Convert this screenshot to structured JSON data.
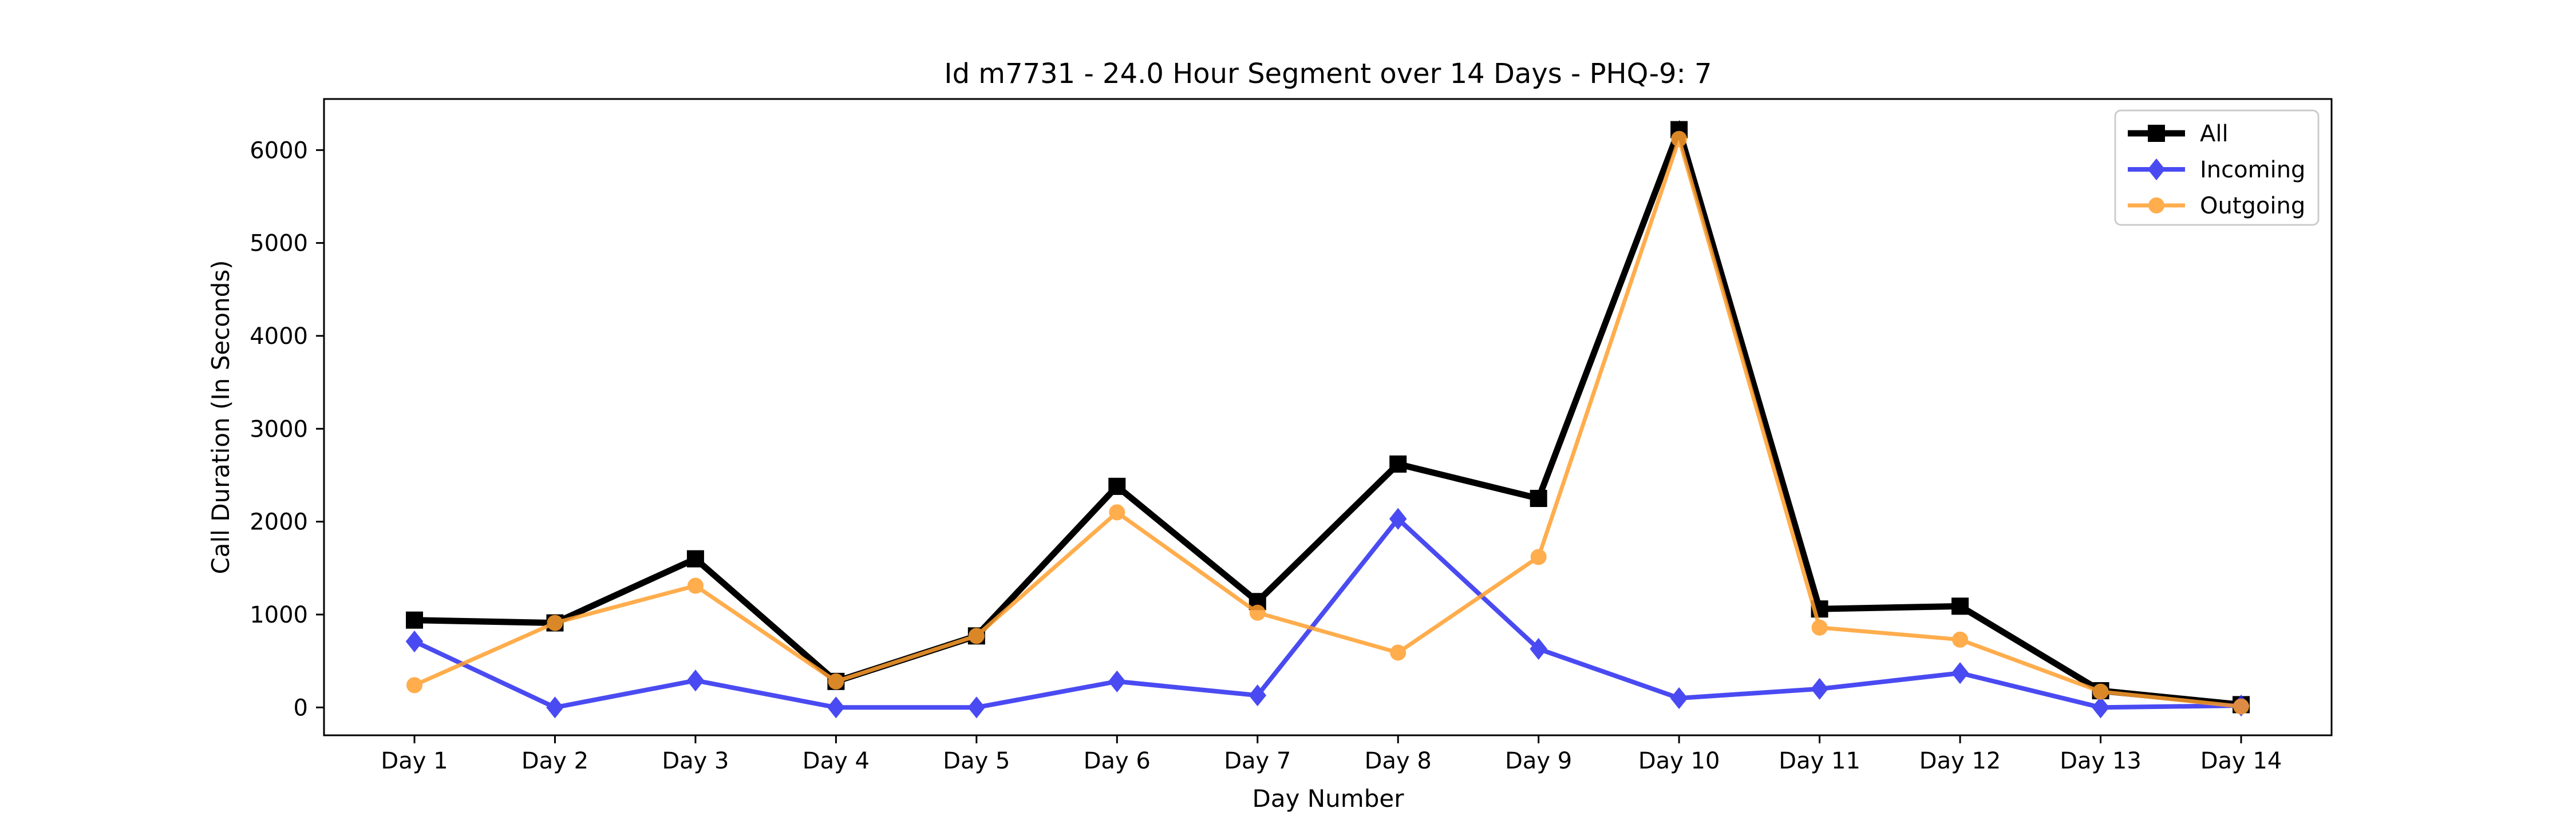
{
  "chart_data": {
    "type": "line",
    "title": "Id m7731 - 24.0 Hour Segment over 14 Days - PHQ-9: 7",
    "xlabel": "Day Number",
    "ylabel": "Call Duration (In Seconds)",
    "categories": [
      "Day 1",
      "Day 2",
      "Day 3",
      "Day 4",
      "Day 5",
      "Day 6",
      "Day 7",
      "Day 8",
      "Day 9",
      "Day 10",
      "Day 11",
      "Day 12",
      "Day 13",
      "Day 14"
    ],
    "ylim": [
      -300,
      6550
    ],
    "yticks": [
      0,
      1000,
      2000,
      3000,
      4000,
      5000,
      6000
    ],
    "grid": false,
    "legend_position": "top-right",
    "series": [
      {
        "name": "All",
        "color": "#000000",
        "marker": "square",
        "values": [
          940,
          910,
          1600,
          280,
          770,
          2380,
          1140,
          2620,
          2250,
          6220,
          1060,
          1090,
          180,
          30
        ]
      },
      {
        "name": "Incoming",
        "color": "#2b2bf0",
        "marker": "diamond",
        "values": [
          710,
          0,
          290,
          0,
          0,
          280,
          130,
          2030,
          630,
          100,
          200,
          370,
          0,
          20
        ]
      },
      {
        "name": "Outgoing",
        "color": "#ff9f2e",
        "marker": "circle",
        "values": [
          240,
          910,
          1310,
          280,
          770,
          2100,
          1020,
          590,
          1620,
          6120,
          860,
          730,
          170,
          10
        ]
      }
    ]
  }
}
